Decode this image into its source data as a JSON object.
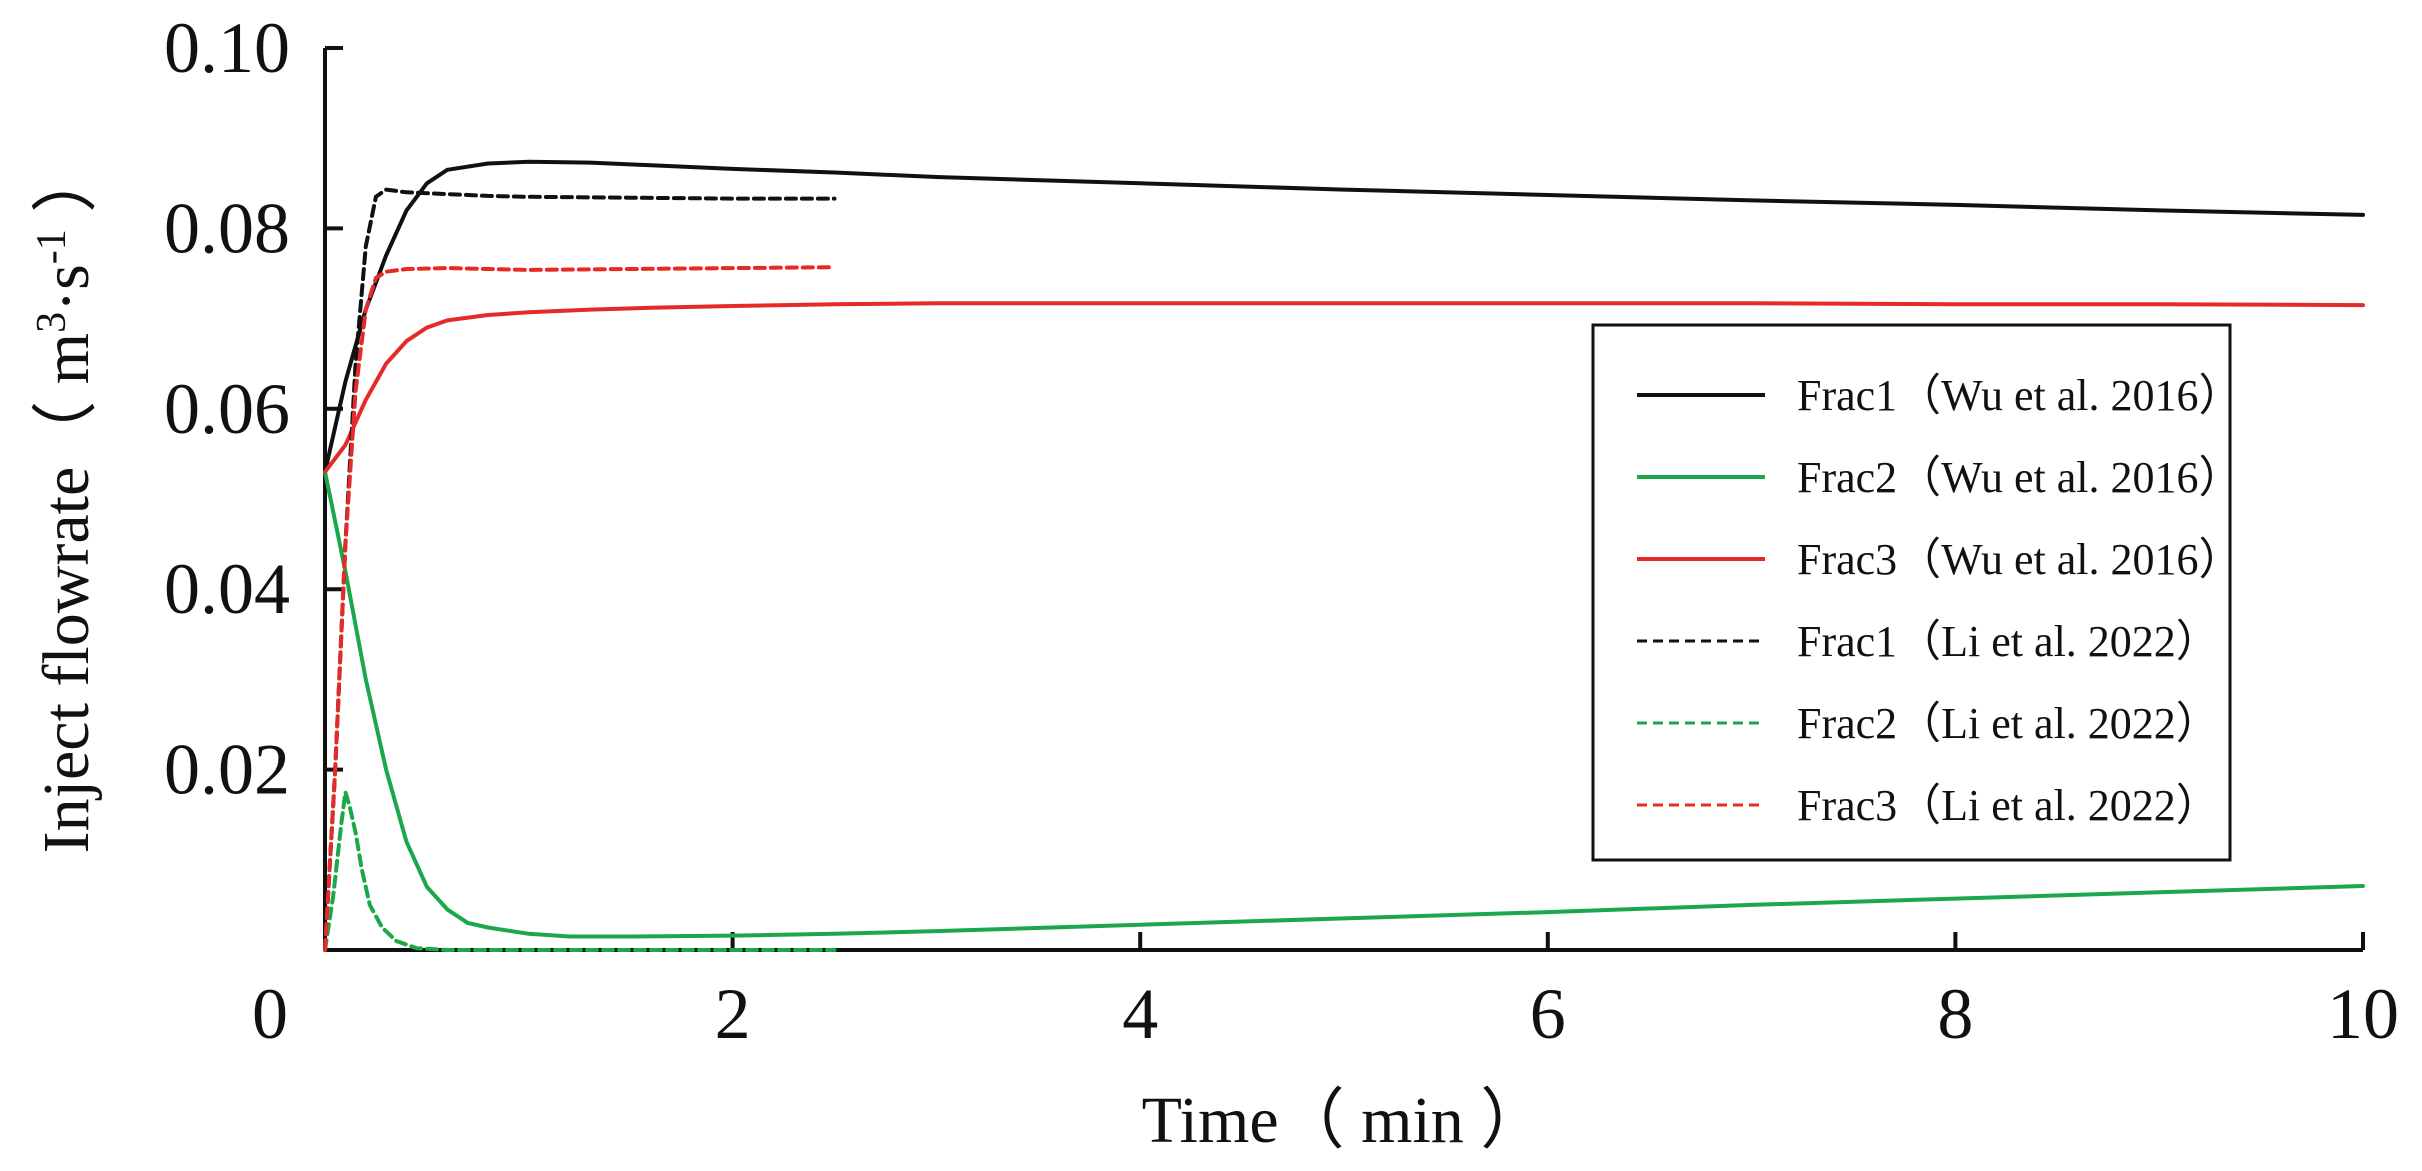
{
  "chart_data": {
    "type": "line",
    "title": "",
    "xlabel": "Time（ min ）",
    "ylabel_main": "Inject flowrate（ m",
    "ylabel_sup1": "3",
    "ylabel_mid": "·s",
    "ylabel_sup2": "-1",
    "ylabel_end": " ）",
    "xlim": [
      0,
      10
    ],
    "ylim": [
      0,
      0.1
    ],
    "x_ticks": [
      {
        "value": 0,
        "label": "0"
      },
      {
        "value": 2,
        "label": "2"
      },
      {
        "value": 4,
        "label": "4"
      },
      {
        "value": 6,
        "label": "6"
      },
      {
        "value": 8,
        "label": "8"
      },
      {
        "value": 10,
        "label": "10"
      }
    ],
    "y_ticks": [
      {
        "value": 0.02,
        "label": "0.02"
      },
      {
        "value": 0.04,
        "label": "0.04"
      },
      {
        "value": 0.06,
        "label": "0.06"
      },
      {
        "value": 0.08,
        "label": "0.08"
      },
      {
        "value": 0.1,
        "label": "0.10"
      }
    ],
    "grid": false,
    "legend_position": "right",
    "series": [
      {
        "name": "Frac1（Wu et al. 2016）",
        "color": "#111111",
        "dash": "solid",
        "x": [
          0,
          0.1,
          0.2,
          0.3,
          0.4,
          0.5,
          0.6,
          0.8,
          1.0,
          1.3,
          1.6,
          2.0,
          2.5,
          3.0,
          4.0,
          5.0,
          6.0,
          7.0,
          8.0,
          9.0,
          10.0
        ],
        "y": [
          0.053,
          0.063,
          0.071,
          0.077,
          0.082,
          0.085,
          0.0865,
          0.0872,
          0.0874,
          0.0873,
          0.087,
          0.0866,
          0.0862,
          0.0857,
          0.085,
          0.0843,
          0.0837,
          0.0831,
          0.0826,
          0.082,
          0.0815
        ]
      },
      {
        "name": "Frac2（Wu et al. 2016）",
        "color": "#1aa84a",
        "dash": "solid",
        "x": [
          0,
          0.1,
          0.2,
          0.3,
          0.4,
          0.5,
          0.6,
          0.7,
          0.8,
          1.0,
          1.2,
          1.5,
          2.0,
          2.5,
          3.0,
          4.0,
          5.0,
          6.0,
          7.0,
          8.0,
          9.0,
          10.0
        ],
        "y": [
          0.053,
          0.042,
          0.03,
          0.02,
          0.012,
          0.007,
          0.0045,
          0.003,
          0.0025,
          0.0018,
          0.0015,
          0.0015,
          0.0016,
          0.0018,
          0.0021,
          0.0028,
          0.0035,
          0.0042,
          0.005,
          0.0057,
          0.0064,
          0.0071
        ]
      },
      {
        "name": "Frac3（Wu et al. 2016）",
        "color": "#e62a2a",
        "dash": "solid",
        "x": [
          0,
          0.1,
          0.2,
          0.3,
          0.4,
          0.5,
          0.6,
          0.8,
          1.0,
          1.3,
          1.6,
          2.0,
          2.5,
          3.0,
          4.0,
          5.0,
          6.0,
          7.0,
          8.0,
          9.0,
          10.0
        ],
        "y": [
          0.053,
          0.056,
          0.061,
          0.065,
          0.0675,
          0.069,
          0.0698,
          0.0704,
          0.0707,
          0.071,
          0.0712,
          0.0714,
          0.0716,
          0.0717,
          0.0717,
          0.0717,
          0.0717,
          0.0717,
          0.0716,
          0.0716,
          0.0715
        ]
      },
      {
        "name": "Frac1（Li  et al. 2022）",
        "color": "#111111",
        "dash": "dashed",
        "x": [
          0,
          0.05,
          0.1,
          0.15,
          0.2,
          0.25,
          0.3,
          0.4,
          0.6,
          0.8,
          1.0,
          1.5,
          2.0,
          2.5
        ],
        "y": [
          0.0,
          0.02,
          0.045,
          0.065,
          0.078,
          0.0835,
          0.0843,
          0.084,
          0.0838,
          0.0836,
          0.0835,
          0.0834,
          0.0833,
          0.0833
        ]
      },
      {
        "name": "Frac2（Li  et al. 2022）",
        "color": "#1aa84a",
        "dash": "dashed",
        "x": [
          0,
          0.04,
          0.08,
          0.1,
          0.12,
          0.15,
          0.18,
          0.22,
          0.28,
          0.35,
          0.45,
          0.6,
          1.0,
          1.5,
          2.0,
          2.5
        ],
        "y": [
          0.0,
          0.006,
          0.014,
          0.0175,
          0.016,
          0.013,
          0.009,
          0.005,
          0.0025,
          0.001,
          0.0002,
          0.0,
          0.0,
          0.0,
          0.0,
          0.0
        ]
      },
      {
        "name": "Frac3（Li  et al. 2022）",
        "color": "#e62a2a",
        "dash": "dashed",
        "x": [
          0,
          0.05,
          0.1,
          0.15,
          0.2,
          0.25,
          0.3,
          0.4,
          0.6,
          0.8,
          1.0,
          1.5,
          2.0,
          2.5
        ],
        "y": [
          0.0,
          0.02,
          0.045,
          0.062,
          0.071,
          0.0745,
          0.0752,
          0.0755,
          0.0756,
          0.0755,
          0.0754,
          0.0755,
          0.0756,
          0.0757
        ]
      }
    ]
  }
}
